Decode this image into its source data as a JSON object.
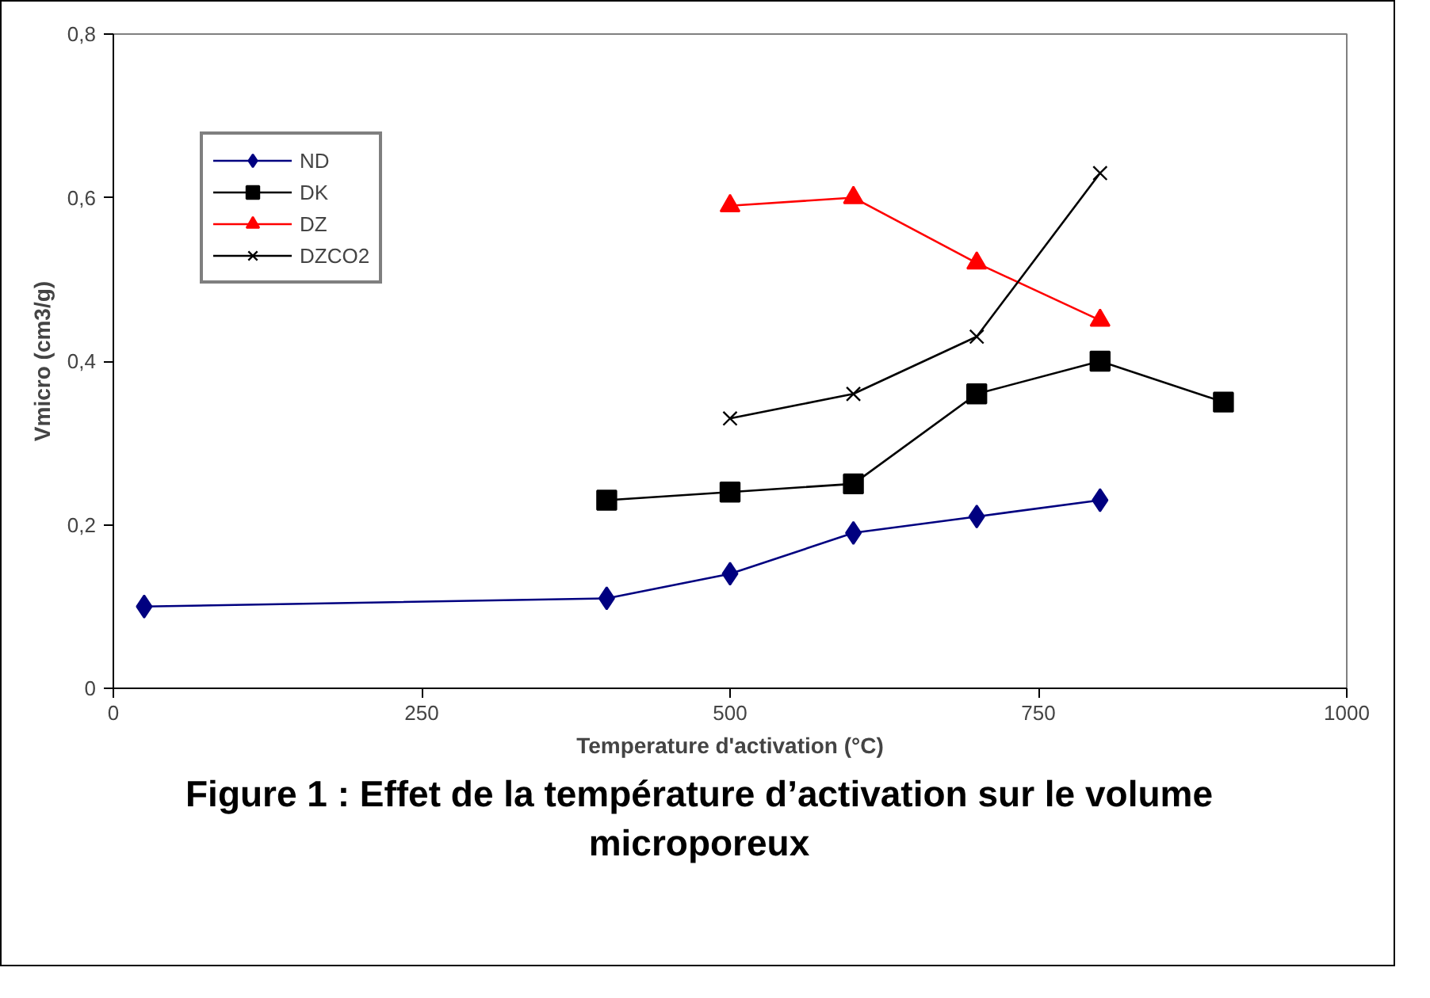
{
  "chart_data": {
    "type": "line",
    "title": "Figure 1 : Effet de la température d’activation sur le volume microporeux",
    "xlabel": "Temperature d'activation (°C)",
    "ylabel": "Vmicro (cm3/g)",
    "xlim": [
      0,
      1000
    ],
    "xticks": [
      0,
      250,
      500,
      750,
      1000
    ],
    "ylim": [
      0,
      0.8
    ],
    "yticks": [
      0,
      {
        "value": 0.2,
        "label": "0,2"
      },
      {
        "value": 0.4,
        "label": "0,4"
      },
      {
        "value": 0.6,
        "label": "0,6"
      },
      {
        "value": 0.8,
        "label": "0,8"
      }
    ],
    "grid": false,
    "legend": "top left",
    "line_style": "solid",
    "series": [
      {
        "name": "ND",
        "color": "#000080",
        "marker": "diamond",
        "x": [
          25,
          400,
          500,
          600,
          700,
          800
        ],
        "values": [
          0.1,
          0.11,
          0.14,
          0.19,
          0.21,
          0.23
        ]
      },
      {
        "name": "DK",
        "color": "#000000",
        "marker": "square",
        "x": [
          400,
          500,
          600,
          700,
          800,
          900
        ],
        "values": [
          0.23,
          0.24,
          0.25,
          0.36,
          0.4,
          0.35
        ]
      },
      {
        "name": "DZ",
        "color": "#ff0000",
        "marker": "triangle",
        "x": [
          500,
          600,
          700,
          800
        ],
        "values": [
          0.59,
          0.6,
          0.52,
          0.45
        ]
      },
      {
        "name": "DZCO2",
        "color": "#000000",
        "marker": "cross",
        "x": [
          500,
          600,
          700,
          800
        ],
        "values": [
          0.33,
          0.36,
          0.43,
          0.63
        ]
      }
    ]
  }
}
